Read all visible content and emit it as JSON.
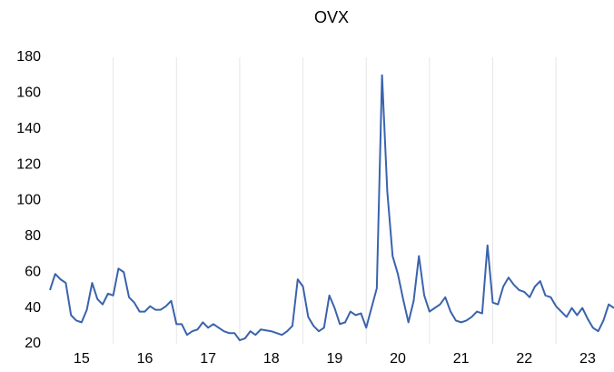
{
  "chart_data": {
    "type": "line",
    "title": "OVX",
    "x": [
      15,
      15.083,
      15.167,
      15.25,
      15.333,
      15.417,
      15.5,
      15.583,
      15.667,
      15.75,
      15.833,
      15.917,
      16,
      16.083,
      16.167,
      16.25,
      16.333,
      16.417,
      16.5,
      16.583,
      16.667,
      16.75,
      16.833,
      16.917,
      17,
      17.083,
      17.167,
      17.25,
      17.333,
      17.417,
      17.5,
      17.583,
      17.667,
      17.75,
      17.833,
      17.917,
      18,
      18.083,
      18.167,
      18.25,
      18.333,
      18.417,
      18.5,
      18.583,
      18.667,
      18.75,
      18.833,
      18.917,
      19,
      19.083,
      19.167,
      19.25,
      19.333,
      19.417,
      19.5,
      19.583,
      19.667,
      19.75,
      19.833,
      19.917,
      20,
      20.083,
      20.167,
      20.25,
      20.333,
      20.417,
      20.5,
      20.583,
      20.667,
      20.75,
      20.833,
      20.917,
      21,
      21.083,
      21.167,
      21.25,
      21.333,
      21.417,
      21.5,
      21.583,
      21.667,
      21.75,
      21.833,
      21.917,
      22,
      22.083,
      22.167,
      22.25,
      22.333,
      22.417,
      22.5,
      22.583,
      22.667,
      22.75,
      22.833,
      22.917,
      23,
      23.083,
      23.167,
      23.25,
      23.333,
      23.417,
      23.5,
      23.583,
      23.667,
      23.75,
      23.833,
      23.917
    ],
    "series": [
      {
        "name": "OVX",
        "color": "#3a63ad",
        "values": [
          50,
          59,
          56,
          54,
          36,
          33,
          32,
          39,
          54,
          45,
          42,
          48,
          47,
          62,
          60,
          46,
          43,
          38,
          38,
          41,
          39,
          39,
          41,
          44,
          31,
          31,
          25,
          27,
          28,
          32,
          29,
          31,
          29,
          27,
          26,
          26,
          22,
          23,
          27,
          25,
          28,
          27.5,
          27,
          26,
          25,
          27,
          30,
          56,
          52,
          35,
          30,
          27,
          29,
          47,
          40,
          31,
          32,
          38,
          36,
          37,
          29,
          40,
          51,
          170,
          105,
          69,
          59,
          45,
          32,
          44,
          69,
          47,
          38,
          40,
          42,
          46,
          38,
          33,
          32,
          33,
          35,
          38,
          37,
          75,
          43,
          42,
          52,
          57,
          53,
          50,
          49,
          46,
          52,
          55,
          47,
          46,
          41,
          38,
          35,
          40,
          36,
          40,
          34,
          29,
          27,
          33,
          42,
          40
        ]
      }
    ],
    "xlim": [
      15,
      23.917
    ],
    "xticks": [
      {
        "value": 15.5,
        "label": "15"
      },
      {
        "value": 16.5,
        "label": "16"
      },
      {
        "value": 17.5,
        "label": "17"
      },
      {
        "value": 18.5,
        "label": "18"
      },
      {
        "value": 19.5,
        "label": "19"
      },
      {
        "value": 20.5,
        "label": "20"
      },
      {
        "value": 21.5,
        "label": "21"
      },
      {
        "value": 22.5,
        "label": "22"
      },
      {
        "value": 23.5,
        "label": "23"
      }
    ],
    "ylim": [
      20,
      180
    ],
    "yticks": [
      20,
      40,
      60,
      80,
      100,
      120,
      140,
      160,
      180
    ],
    "xgrid": true
  }
}
